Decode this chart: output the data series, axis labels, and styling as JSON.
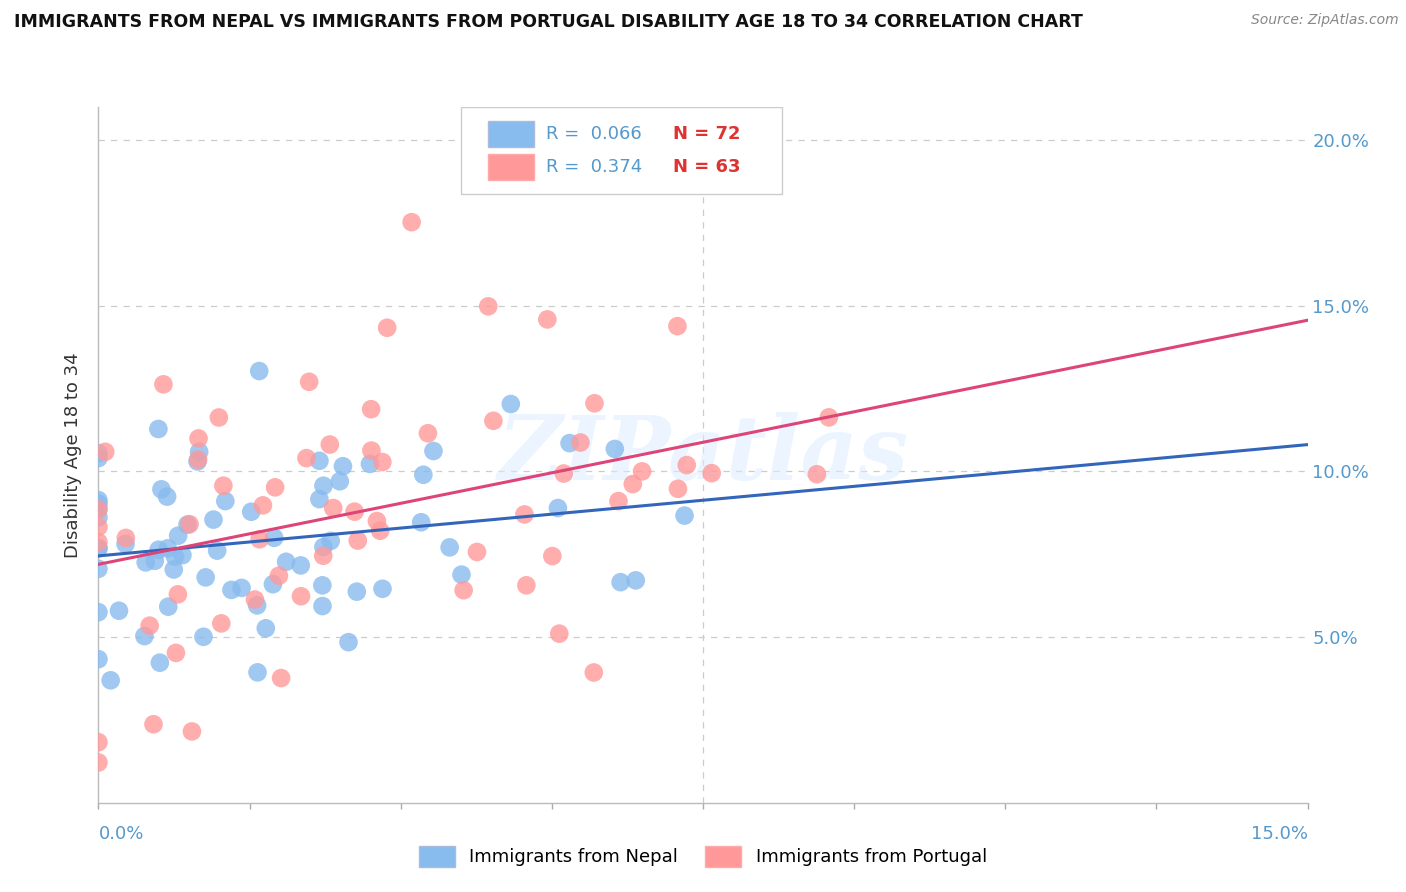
{
  "title": "IMMIGRANTS FROM NEPAL VS IMMIGRANTS FROM PORTUGAL DISABILITY AGE 18 TO 34 CORRELATION CHART",
  "source": "Source: ZipAtlas.com",
  "ylabel": "Disability Age 18 to 34",
  "xlim": [
    0.0,
    0.15
  ],
  "ylim": [
    0.0,
    0.21
  ],
  "yticks": [
    0.05,
    0.1,
    0.15,
    0.2
  ],
  "ytick_labels": [
    "5.0%",
    "10.0%",
    "15.0%",
    "20.0%"
  ],
  "nepal_R": 0.066,
  "nepal_N": 72,
  "portugal_R": 0.374,
  "portugal_N": 63,
  "nepal_color": "#88BBEE",
  "portugal_color": "#FF9999",
  "nepal_line_color": "#3366BB",
  "portugal_line_color": "#DD4477",
  "legend_label_nepal": "Immigrants from Nepal",
  "legend_label_portugal": "Immigrants from Portugal",
  "watermark": "ZIPatlas",
  "tick_color": "#5599CC",
  "grid_color": "#CCCCCC",
  "background": "#FFFFFF"
}
